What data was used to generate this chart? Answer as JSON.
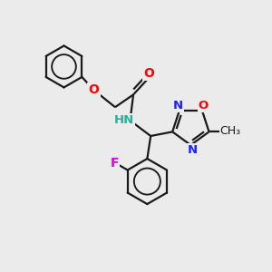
{
  "bg_color": "#ebebeb",
  "bond_color": "#1a1a1a",
  "bond_width": 1.6,
  "N_color": "#2020ff",
  "O_color": "#ff0000",
  "F_color": "#dd00dd",
  "NH_color": "#20b0a0",
  "figsize": [
    3.0,
    3.0
  ],
  "dpi": 100,
  "xlim": [
    0,
    10
  ],
  "ylim": [
    0,
    10
  ]
}
